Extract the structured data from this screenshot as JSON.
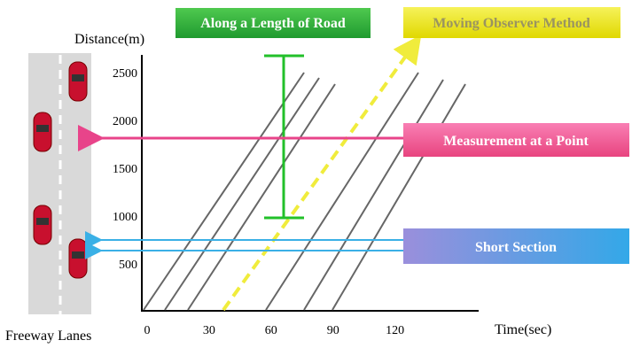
{
  "header": {
    "y_axis_title": "Distance(m)",
    "x_axis_title": "Time(sec)",
    "road_label": "Freeway Lanes"
  },
  "y_axis": {
    "ticks": [
      500,
      1000,
      1500,
      2000,
      2500
    ]
  },
  "x_axis": {
    "ticks": [
      0,
      30,
      60,
      90,
      120
    ]
  },
  "methods": [
    {
      "label": "Along a Length of Road"
    },
    {
      "label": "Moving Observer Method"
    },
    {
      "label": "Measurement at a Point"
    },
    {
      "label": "Short Section"
    }
  ]
}
